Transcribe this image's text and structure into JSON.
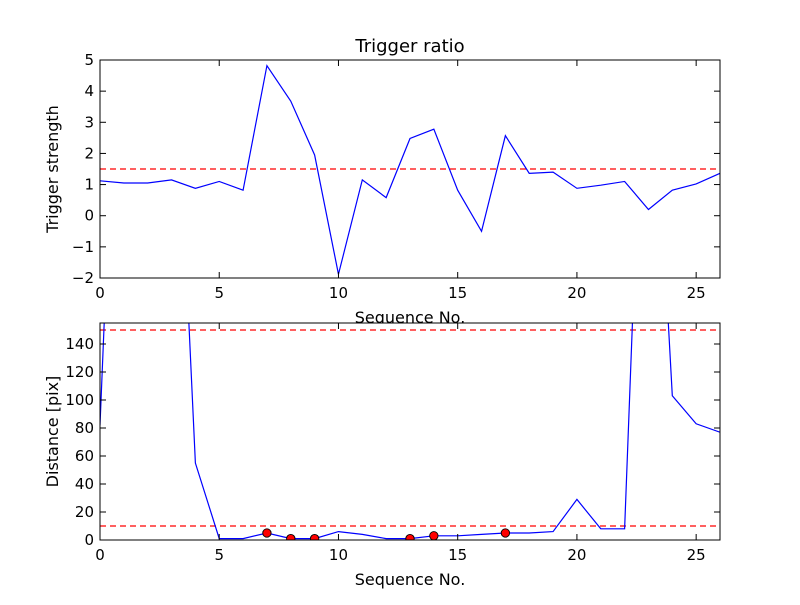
{
  "chart_data": [
    {
      "type": "line",
      "title": "Trigger ratio",
      "xlabel": "Sequence No.",
      "ylabel": "Trigger strength",
      "xlim": [
        0,
        26
      ],
      "ylim": [
        -2,
        5
      ],
      "xticks": [
        0,
        5,
        10,
        15,
        20,
        25
      ],
      "yticks": [
        -2,
        -1,
        0,
        1,
        2,
        3,
        4,
        5
      ],
      "ytick_labels": [
        "−2",
        "−1",
        "0",
        "1",
        "2",
        "3",
        "4",
        "5"
      ],
      "grid": false,
      "series": [
        {
          "color": "#0000ff",
          "x": [
            0,
            1,
            2,
            3,
            4,
            5,
            6,
            7,
            8,
            9,
            10,
            11,
            12,
            13,
            14,
            15,
            16,
            17,
            18,
            19,
            20,
            21,
            22,
            23,
            24,
            25,
            26
          ],
          "y": [
            1.12,
            1.05,
            1.05,
            1.15,
            0.88,
            1.1,
            0.82,
            4.82,
            3.68,
            1.95,
            -1.88,
            1.15,
            0.58,
            2.48,
            2.78,
            0.82,
            -0.5,
            2.57,
            1.36,
            1.4,
            0.88,
            0.98,
            1.1,
            0.2,
            0.82,
            1.02,
            1.36
          ]
        }
      ],
      "hlines": [
        {
          "y": 1.5,
          "color": "#ff0000",
          "style": "dashed"
        }
      ]
    },
    {
      "type": "line",
      "title": "",
      "xlabel": "Sequence No.",
      "ylabel": "Distance [pix]",
      "xlim": [
        0,
        26
      ],
      "ylim": [
        0,
        155
      ],
      "xticks": [
        0,
        5,
        10,
        15,
        20,
        25
      ],
      "yticks": [
        0,
        20,
        40,
        60,
        80,
        100,
        120,
        140
      ],
      "grid": false,
      "series": [
        {
          "color": "#0000ff",
          "x": [
            0,
            0.2,
            3.7,
            4,
            5,
            6,
            7,
            8,
            9,
            10,
            11,
            12,
            13,
            14,
            15,
            16,
            17,
            18,
            19,
            20,
            21,
            22,
            22.35,
            23.8,
            24,
            25,
            26
          ],
          "y": [
            82,
            165,
            165,
            55,
            1,
            1,
            5,
            1,
            1,
            6,
            4,
            1,
            1,
            3,
            3,
            4,
            5,
            5,
            6,
            29,
            8,
            8,
            165,
            165,
            103,
            83,
            77
          ]
        },
        {
          "color": "#ff0000",
          "marker": "circle",
          "x": [
            7,
            8,
            9,
            13,
            14,
            17
          ],
          "y": [
            5,
            1,
            1,
            1,
            3,
            5
          ]
        }
      ],
      "hlines": [
        {
          "y": 150,
          "color": "#ff0000",
          "style": "dashed"
        },
        {
          "y": 10,
          "color": "#ff0000",
          "style": "dashed"
        }
      ]
    }
  ]
}
